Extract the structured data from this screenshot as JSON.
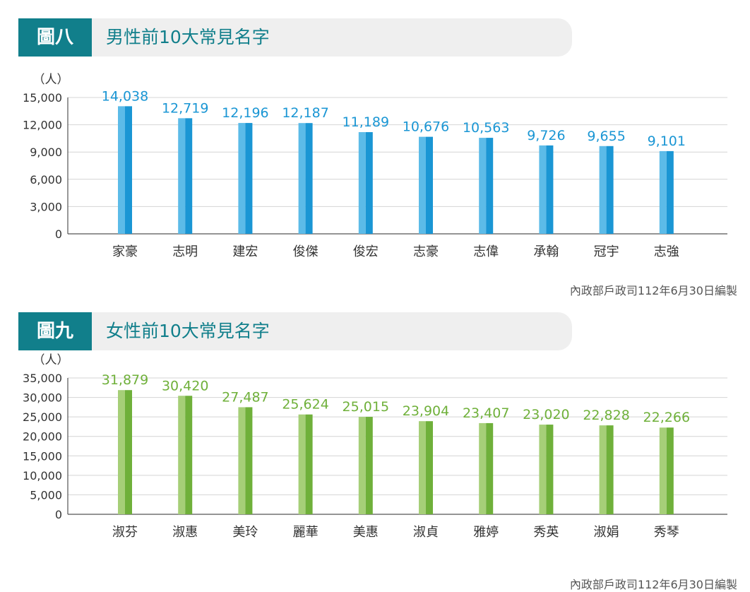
{
  "charts": [
    {
      "tag": "圖八",
      "title": "男性前10大常見名字",
      "source": "內政部戶政司112年6月30日編製",
      "colors": {
        "bar_light": "#5cbbe8",
        "bar_dark": "#1a96d4",
        "label": "#1a96d4"
      }
    },
    {
      "tag": "圖九",
      "title": "女性前10大常見名字",
      "source": "內政部戶政司112年6月30日編製",
      "colors": {
        "bar_light": "#a6cf78",
        "bar_dark": "#6fb03a",
        "label": "#6fb03a"
      }
    }
  ],
  "chart_data": [
    {
      "type": "bar",
      "title": "男性前10大常見名字",
      "ylabel": "（人）",
      "categories": [
        "家豪",
        "志明",
        "建宏",
        "俊傑",
        "俊宏",
        "志豪",
        "志偉",
        "承翰",
        "冠宇",
        "志強"
      ],
      "values": [
        14038,
        12719,
        12196,
        12187,
        11189,
        10676,
        10563,
        9726,
        9655,
        9101
      ],
      "value_labels": [
        "14,038",
        "12,719",
        "12,196",
        "12,187",
        "11,189",
        "10,676",
        "10,563",
        "9,726",
        "9,655",
        "9,101"
      ],
      "ylim": [
        0,
        15000
      ],
      "yticks": [
        0,
        3000,
        6000,
        9000,
        12000,
        15000
      ],
      "ytick_labels": [
        "0",
        "3,000",
        "6,000",
        "9,000",
        "12,000",
        "15,000"
      ],
      "grid": true
    },
    {
      "type": "bar",
      "title": "女性前10大常見名字",
      "ylabel": "（人）",
      "categories": [
        "淑芬",
        "淑惠",
        "美玲",
        "麗華",
        "美惠",
        "淑貞",
        "雅婷",
        "秀英",
        "淑娟",
        "秀琴"
      ],
      "values": [
        31879,
        30420,
        27487,
        25624,
        25015,
        23904,
        23407,
        23020,
        22828,
        22266
      ],
      "value_labels": [
        "31,879",
        "30,420",
        "27,487",
        "25,624",
        "25,015",
        "23,904",
        "23,407",
        "23,020",
        "22,828",
        "22,266"
      ],
      "ylim": [
        0,
        35000
      ],
      "yticks": [
        0,
        5000,
        10000,
        15000,
        20000,
        25000,
        30000,
        35000
      ],
      "ytick_labels": [
        "0",
        "5,000",
        "10,000",
        "15,000",
        "20,000",
        "25,000",
        "30,000",
        "35,000"
      ],
      "grid": true
    }
  ]
}
